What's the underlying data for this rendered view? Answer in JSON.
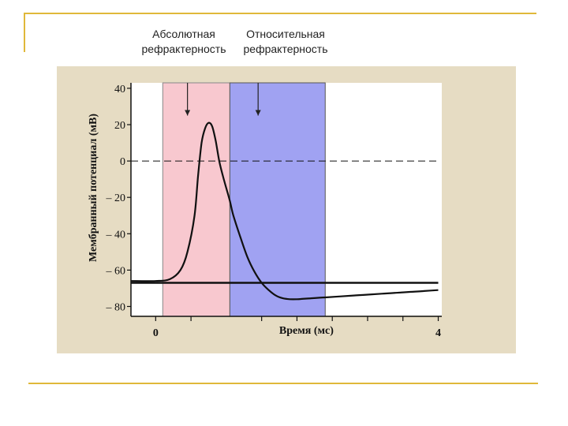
{
  "slide": {
    "accent_color": "#e0b83a"
  },
  "header": {
    "absolute_label": "Абсолютная\nрефрактерность",
    "relative_label": "Относительная\nрефрактерность"
  },
  "chart_data": {
    "type": "line",
    "ylabel": "Мембранный потенциал (мВ)",
    "xlabel": "Время (мс)",
    "xlim": [
      -0.35,
      4.05
    ],
    "ylim": [
      -85,
      43
    ],
    "yticks": [
      {
        "value": 40,
        "label": "40"
      },
      {
        "value": 20,
        "label": "20"
      },
      {
        "value": 0,
        "label": "0"
      },
      {
        "value": -20,
        "label": "– 20"
      },
      {
        "value": -40,
        "label": "– 40"
      },
      {
        "value": -60,
        "label": "– 60"
      },
      {
        "value": -80,
        "label": "– 80"
      }
    ],
    "xticks": [
      {
        "value": 0,
        "label": "0"
      },
      {
        "value": 4,
        "label": "4"
      }
    ],
    "minor_xticks": [
      0.5,
      1.5,
      2,
      2.5,
      3,
      3.5
    ],
    "shaded_regions": [
      {
        "name": "absolute",
        "x0": 0.1,
        "x1": 1.05,
        "color": "#f8c8cf",
        "stroke": "#888888"
      },
      {
        "name": "relative",
        "x0": 1.05,
        "x1": 2.4,
        "color": "#a0a2f2",
        "stroke": "#555555"
      }
    ],
    "reference_lines": [
      {
        "name": "zero-line",
        "y": 0,
        "style": "dashed",
        "x0": -0.35,
        "x1": 4.0
      },
      {
        "name": "resting-line",
        "y": -67,
        "style": "solid",
        "x0": -0.35,
        "x1": 4.0
      }
    ],
    "series": [
      {
        "x": [
          -0.35,
          0.0,
          0.2,
          0.35,
          0.45,
          0.55,
          0.6,
          0.65,
          0.7,
          0.75,
          0.8,
          0.85,
          0.9,
          0.95,
          1.0,
          1.05,
          1.1,
          1.2,
          1.3,
          1.4,
          1.5,
          1.6,
          1.7,
          1.8,
          1.9,
          2.0,
          2.2,
          2.4,
          2.6,
          2.8,
          3.0,
          3.2,
          3.4,
          3.6,
          3.8,
          4.0
        ],
        "y": [
          -66,
          -66,
          -65,
          -60,
          -50,
          -30,
          -8,
          10,
          18,
          21,
          19,
          11,
          0,
          -8,
          -15,
          -22,
          -30,
          -42,
          -53,
          -61,
          -67,
          -71,
          -74,
          -75.5,
          -76,
          -76,
          -75.5,
          -75,
          -74.5,
          -74,
          -73.5,
          -73,
          -72.5,
          -72,
          -71.5,
          -71
        ]
      }
    ],
    "arrows": [
      {
        "name": "absolute-arrow",
        "x": 0.45,
        "y_from": 43,
        "y_to": 25
      },
      {
        "name": "relative-arrow",
        "x": 1.45,
        "y_from": 43,
        "y_to": 25
      }
    ]
  }
}
